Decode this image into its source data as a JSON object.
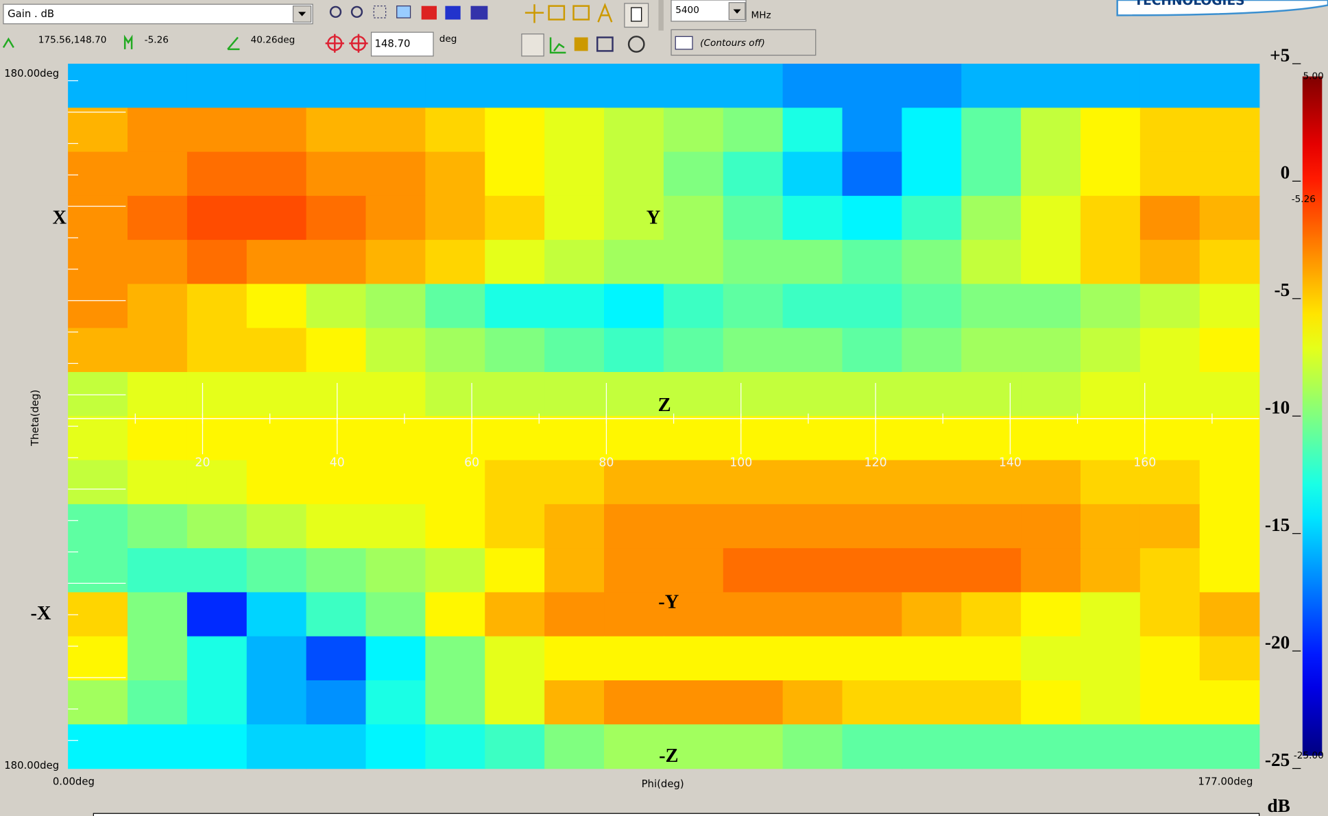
{
  "toolbar": {
    "quantity": "Gain . dB",
    "cursor_position": "175.56,148.70",
    "cursor_value": "-5.26",
    "cursor_angle": "40.26deg",
    "cut_angle": "148.70",
    "cut_unit": "deg",
    "frequency": "5400",
    "frequency_unit": "MHz",
    "contours": "(Contours off)",
    "logo": "TECHNOLOGIES"
  },
  "chart_data": {
    "type": "heatmap",
    "x_label": "Phi(deg)",
    "y_label": "Theta(deg)",
    "x_start_label": "0.00deg",
    "x_end_label": "177.00deg",
    "y_top_label": "180.00deg",
    "y_bottom_label": "180.00deg",
    "xlim": [
      0,
      177
    ],
    "xticks": [
      20,
      40,
      60,
      80,
      100,
      120,
      140,
      160
    ],
    "annotations": [
      "X",
      "Y",
      "Z",
      "-X",
      "-Y",
      "-Z"
    ],
    "zlim": [
      -25,
      5
    ],
    "colormap": "jet",
    "cticks": [
      {
        "value": 5,
        "label": "+5"
      },
      0,
      -5,
      -10,
      -15,
      -20,
      -25
    ],
    "clabels": [
      {
        "value": 5,
        "label": "5.00"
      },
      {
        "value": -25,
        "label": "-25.00"
      }
    ],
    "marker_label": "-5.26",
    "unit": "dB",
    "z": [
      [
        -16,
        -16,
        -16,
        -16,
        -16,
        -16,
        -16,
        -16,
        -16,
        -16,
        -16,
        -16,
        -17,
        -17,
        -17,
        -16,
        -16,
        -16,
        -16,
        -16
      ],
      [
        -4,
        -3,
        -3,
        -3,
        -4,
        -4,
        -5,
        -6,
        -7,
        -8,
        -9,
        -10,
        -13,
        -17,
        -14,
        -11,
        -8,
        -6,
        -5,
        -5
      ],
      [
        -3,
        -3,
        -2,
        -2,
        -3,
        -3,
        -4,
        -6,
        -7,
        -8,
        -10,
        -12,
        -15,
        -18,
        -14,
        -11,
        -8,
        -6,
        -5,
        -5
      ],
      [
        -3,
        -2,
        -1,
        -1,
        -2,
        -3,
        -4,
        -5,
        -7,
        -8,
        -9,
        -11,
        -13,
        -14,
        -12,
        -9,
        -7,
        -5,
        -3,
        -4
      ],
      [
        -3,
        -3,
        -2,
        -3,
        -3,
        -4,
        -5,
        -7,
        -8,
        -9,
        -9,
        -10,
        -10,
        -11,
        -10,
        -8,
        -7,
        -5,
        -4,
        -5
      ],
      [
        -3,
        -4,
        -5,
        -6,
        -8,
        -9,
        -11,
        -13,
        -13,
        -14,
        -12,
        -11,
        -12,
        -12,
        -11,
        -10,
        -10,
        -9,
        -8,
        -7
      ],
      [
        -4,
        -4,
        -5,
        -5,
        -6,
        -8,
        -9,
        -10,
        -11,
        -12,
        -11,
        -10,
        -10,
        -11,
        -10,
        -9,
        -9,
        -8,
        -7,
        -6
      ],
      [
        -8,
        -7,
        -7,
        -7,
        -7,
        -7,
        -8,
        -8,
        -8,
        -8,
        -8,
        -8,
        -8,
        -8,
        -8,
        -8,
        -8,
        -7,
        -7,
        -7
      ],
      [
        -7,
        -6,
        -6,
        -6,
        -6,
        -6,
        -6,
        -6,
        -6,
        -6,
        -6,
        -6,
        -6,
        -6,
        -6,
        -6,
        -6,
        -6,
        -6,
        -6
      ],
      [
        -8,
        -7,
        -7,
        -6,
        -6,
        -6,
        -6,
        -5,
        -5,
        -4,
        -4,
        -4,
        -4,
        -4,
        -4,
        -4,
        -4,
        -5,
        -5,
        -6
      ],
      [
        -11,
        -10,
        -9,
        -8,
        -7,
        -7,
        -6,
        -5,
        -4,
        -3,
        -3,
        -3,
        -3,
        -3,
        -3,
        -3,
        -3,
        -4,
        -4,
        -6
      ],
      [
        -11,
        -12,
        -12,
        -11,
        -10,
        -9,
        -8,
        -6,
        -4,
        -3,
        -3,
        -2,
        -2,
        -2,
        -2,
        -2,
        -3,
        -4,
        -5,
        -6
      ],
      [
        -5,
        -10,
        -20,
        -15,
        -12,
        -10,
        -6,
        -4,
        -3,
        -3,
        -3,
        -3,
        -3,
        -3,
        -4,
        -5,
        -6,
        -7,
        -5,
        -4
      ],
      [
        -6,
        -10,
        -13,
        -16,
        -19,
        -14,
        -10,
        -7,
        -6,
        -6,
        -6,
        -6,
        -6,
        -6,
        -6,
        -6,
        -7,
        -7,
        -6,
        -5
      ],
      [
        -9,
        -11,
        -13,
        -16,
        -17,
        -13,
        -10,
        -7,
        -4,
        -3,
        -3,
        -3,
        -4,
        -5,
        -5,
        -5,
        -6,
        -7,
        -6,
        -6
      ],
      [
        -14,
        -14,
        -14,
        -15,
        -15,
        -14,
        -13,
        -12,
        -10,
        -9,
        -9,
        -9,
        -10,
        -11,
        -11,
        -11,
        -11,
        -11,
        -11,
        -11
      ]
    ]
  }
}
